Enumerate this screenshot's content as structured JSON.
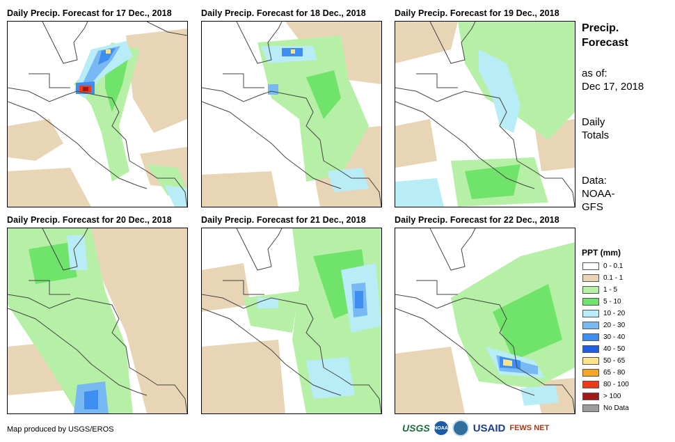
{
  "panels": [
    {
      "title": "Daily Precip. Forecast for 17 Dec., 2018"
    },
    {
      "title": "Daily Precip. Forecast for 18 Dec., 2018"
    },
    {
      "title": "Daily Precip. Forecast for 19 Dec., 2018"
    },
    {
      "title": "Daily Precip. Forecast for 20 Dec., 2018"
    },
    {
      "title": "Daily Precip. Forecast for 21 Dec., 2018"
    },
    {
      "title": "Daily Precip. Forecast for 22 Dec., 2018"
    }
  ],
  "sidebar": {
    "heading_line1": "Precip.",
    "heading_line2": "Forecast",
    "asof_label": "as of:",
    "asof_date": "Dec 17, 2018",
    "totals_line1": "Daily",
    "totals_line2": "Totals",
    "data_label": "Data:",
    "data_source_line1": "NOAA-",
    "data_source_line2": "GFS"
  },
  "legend": {
    "title": "PPT (mm)",
    "items": [
      {
        "label": "0 - 0.1",
        "color": "#ffffff"
      },
      {
        "label": "0.1 - 1",
        "color": "#e8d5b5"
      },
      {
        "label": "1 - 5",
        "color": "#b5f0a6"
      },
      {
        "label": "5 - 10",
        "color": "#6fe36a"
      },
      {
        "label": "10 - 20",
        "color": "#b8ecf6"
      },
      {
        "label": "20 - 30",
        "color": "#78b8f3"
      },
      {
        "label": "30 - 40",
        "color": "#3d8ef0"
      },
      {
        "label": "40 - 50",
        "color": "#1f5ee0"
      },
      {
        "label": "50 - 65",
        "color": "#ffe38a"
      },
      {
        "label": "65 - 80",
        "color": "#f5a623"
      },
      {
        "label": "80 - 100",
        "color": "#ee3b16"
      },
      {
        "label": "> 100",
        "color": "#a31919"
      },
      {
        "label": "No Data",
        "color": "#9c9c9c"
      }
    ]
  },
  "footer": {
    "credit": "Map produced by USGS/EROS",
    "logos": {
      "usgs": "USGS",
      "noaa": "NOAA",
      "usaid": "USAID",
      "fews": "FEWS NET"
    }
  }
}
